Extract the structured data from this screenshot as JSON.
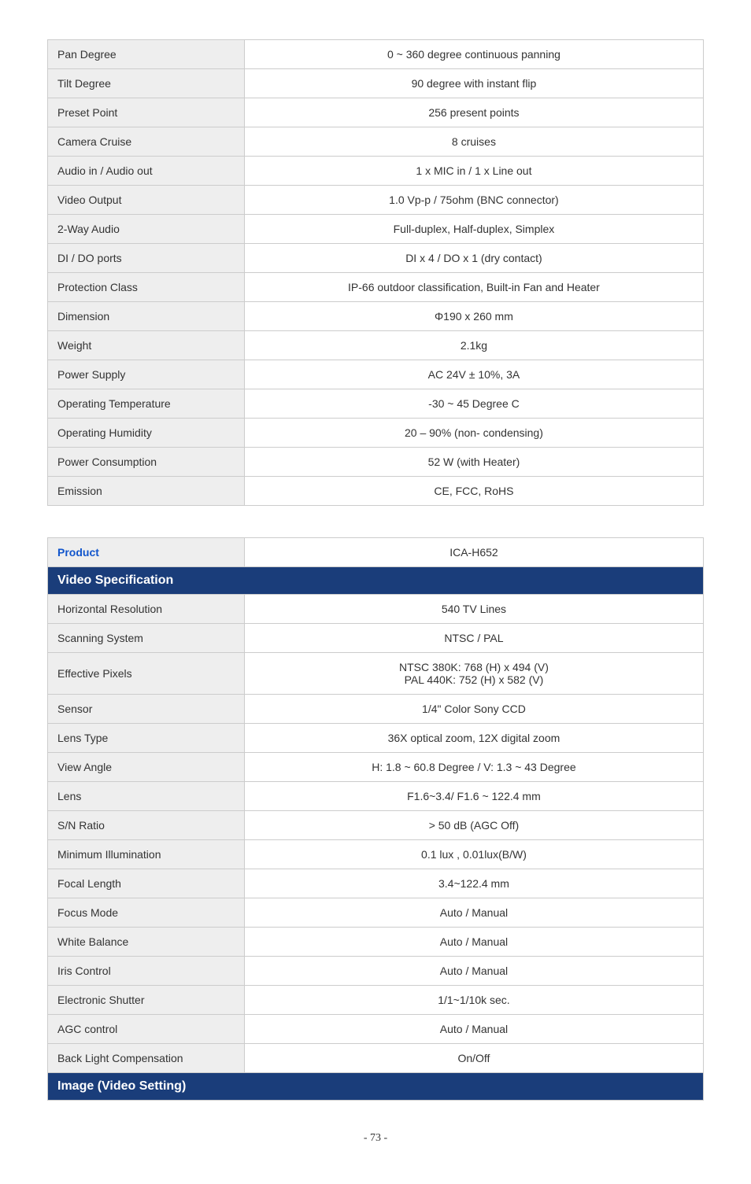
{
  "table1": {
    "rows": [
      {
        "label": "Pan Degree",
        "value": "0 ~ 360 degree continuous panning"
      },
      {
        "label": "Tilt Degree",
        "value": "90 degree with instant flip"
      },
      {
        "label": "Preset Point",
        "value": "256 present points"
      },
      {
        "label": "Camera Cruise",
        "value": "8 cruises"
      },
      {
        "label": "Audio in / Audio out",
        "value": "1 x MIC in / 1 x Line out"
      },
      {
        "label": "Video Output",
        "value": "1.0 Vp-p / 75ohm (BNC connector)"
      },
      {
        "label": "2-Way Audio",
        "value": "Full-duplex, Half-duplex, Simplex"
      },
      {
        "label": "DI / DO ports",
        "value": "DI x 4 / DO x 1 (dry contact)"
      },
      {
        "label": "Protection Class",
        "value": "IP-66 outdoor classification, Built-in Fan and Heater"
      },
      {
        "label": "Dimension",
        "value": "Φ190 x 260 mm"
      },
      {
        "label": "Weight",
        "value": "2.1kg"
      },
      {
        "label": "Power Supply",
        "value": "AC 24V ± 10%, 3A"
      },
      {
        "label": "Operating Temperature",
        "value": "-30 ~ 45 Degree C"
      },
      {
        "label": "Operating Humidity",
        "value": "20 – 90% (non- condensing)"
      },
      {
        "label": "Power Consumption",
        "value": "52 W (with Heater)"
      },
      {
        "label": "Emission",
        "value": "CE, FCC, RoHS"
      }
    ]
  },
  "table2": {
    "productLabel": "Product",
    "productValue": "ICA-H652",
    "section1": "Video Specification",
    "rows1": [
      {
        "label": "Horizontal Resolution",
        "value": "540 TV Lines"
      },
      {
        "label": "Scanning System",
        "value": "NTSC / PAL"
      },
      {
        "label": "Effective Pixels",
        "value": "NTSC 380K: 768 (H) x 494 (V)\nPAL 440K: 752 (H) x 582 (V)"
      },
      {
        "label": "Sensor",
        "value": "1/4\" Color Sony CCD"
      },
      {
        "label": "Lens Type",
        "value": "36X optical zoom, 12X digital zoom"
      },
      {
        "label": "View Angle",
        "value": "H: 1.8 ~ 60.8 Degree / V: 1.3 ~ 43 Degree"
      },
      {
        "label": "Lens",
        "value": "F1.6~3.4/ F1.6 ~ 122.4 mm"
      },
      {
        "label": "S/N Ratio",
        "value": "> 50 dB (AGC Off)"
      },
      {
        "label": "Minimum Illumination",
        "value": "0.1 lux , 0.01lux(B/W)"
      },
      {
        "label": "Focal Length",
        "value": "3.4~122.4 mm"
      },
      {
        "label": "Focus Mode",
        "value": "Auto / Manual"
      },
      {
        "label": "White Balance",
        "value": "Auto / Manual"
      },
      {
        "label": "Iris Control",
        "value": "Auto / Manual"
      },
      {
        "label": "Electronic Shutter",
        "value": "1/1~1/10k sec."
      },
      {
        "label": "AGC control",
        "value": "Auto / Manual"
      },
      {
        "label": "Back Light Compensation",
        "value": "On/Off"
      }
    ],
    "section2": "Image (Video Setting)"
  },
  "pageNumber": "- 73 -"
}
